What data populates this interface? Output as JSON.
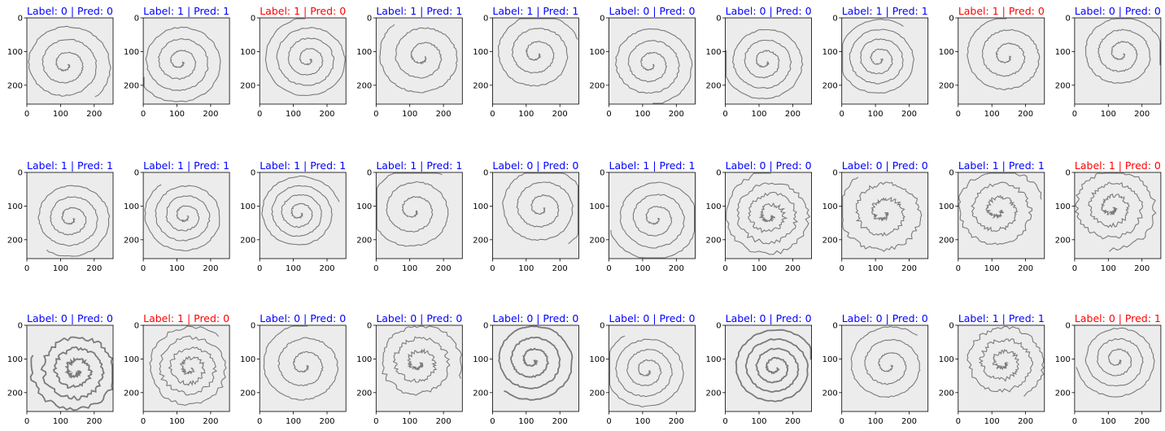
{
  "chart_data": {
    "type": "image-grid",
    "rows": 3,
    "cols": 10,
    "axis": {
      "xlim": [
        0,
        256
      ],
      "ylim": [
        256,
        0
      ],
      "xticks": [
        0,
        100,
        200
      ],
      "yticks": [
        0,
        100,
        200
      ]
    },
    "colors": {
      "correct_title": "#0000ff",
      "wrong_title": "#ff0000",
      "panel_bg": "#ececec",
      "stroke": "#7a7a7a"
    },
    "panels": [
      {
        "title": "Label: 0 | Pred: 0",
        "label": 0,
        "pred": 0
      },
      {
        "title": "Label: 1 | Pred: 1",
        "label": 1,
        "pred": 1
      },
      {
        "title": "Label: 1 | Pred: 0",
        "label": 1,
        "pred": 0
      },
      {
        "title": "Label: 1 | Pred: 1",
        "label": 1,
        "pred": 1
      },
      {
        "title": "Label: 1 | Pred: 1",
        "label": 1,
        "pred": 1
      },
      {
        "title": "Label: 0 | Pred: 0",
        "label": 0,
        "pred": 0
      },
      {
        "title": "Label: 0 | Pred: 0",
        "label": 0,
        "pred": 0
      },
      {
        "title": "Label: 1 | Pred: 1",
        "label": 1,
        "pred": 1
      },
      {
        "title": "Label: 1 | Pred: 0",
        "label": 1,
        "pred": 0
      },
      {
        "title": "Label: 0 | Pred: 0",
        "label": 0,
        "pred": 0
      },
      {
        "title": "Label: 1 | Pred: 1",
        "label": 1,
        "pred": 1
      },
      {
        "title": "Label: 1 | Pred: 1",
        "label": 1,
        "pred": 1
      },
      {
        "title": "Label: 1 | Pred: 1",
        "label": 1,
        "pred": 1
      },
      {
        "title": "Label: 1 | Pred: 1",
        "label": 1,
        "pred": 1
      },
      {
        "title": "Label: 0 | Pred: 0",
        "label": 0,
        "pred": 0
      },
      {
        "title": "Label: 1 | Pred: 1",
        "label": 1,
        "pred": 1
      },
      {
        "title": "Label: 0 | Pred: 0",
        "label": 0,
        "pred": 0
      },
      {
        "title": "Label: 0 | Pred: 0",
        "label": 0,
        "pred": 0
      },
      {
        "title": "Label: 1 | Pred: 1",
        "label": 1,
        "pred": 1
      },
      {
        "title": "Label: 1 | Pred: 0",
        "label": 1,
        "pred": 0
      },
      {
        "title": "Label: 0 | Pred: 0",
        "label": 0,
        "pred": 0
      },
      {
        "title": "Label: 1 | Pred: 0",
        "label": 1,
        "pred": 0
      },
      {
        "title": "Label: 0 | Pred: 0",
        "label": 0,
        "pred": 0
      },
      {
        "title": "Label: 0 | Pred: 0",
        "label": 0,
        "pred": 0
      },
      {
        "title": "Label: 0 | Pred: 0",
        "label": 0,
        "pred": 0
      },
      {
        "title": "Label: 0 | Pred: 0",
        "label": 0,
        "pred": 0
      },
      {
        "title": "Label: 0 | Pred: 0",
        "label": 0,
        "pred": 0
      },
      {
        "title": "Label: 0 | Pred: 0",
        "label": 0,
        "pred": 0
      },
      {
        "title": "Label: 1 | Pred: 1",
        "label": 1,
        "pred": 1
      },
      {
        "title": "Label: 0 | Pred: 1",
        "label": 0,
        "pred": 1
      }
    ]
  }
}
